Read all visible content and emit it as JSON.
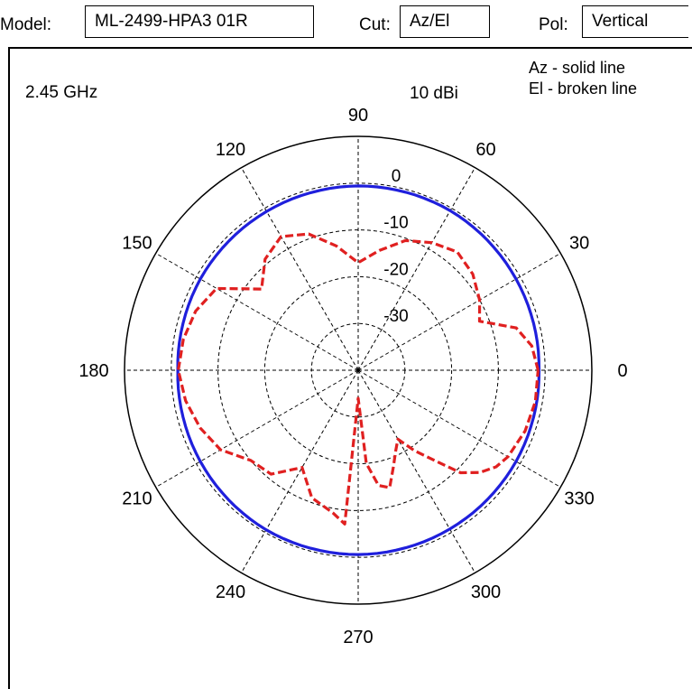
{
  "header": {
    "model_label": "Model:",
    "model_value": "ML-2499-HPA3 01R",
    "cut_label": "Cut:",
    "cut_value": "Az/El",
    "pol_label": "Pol:",
    "pol_value": "Vertical"
  },
  "chart_data": {
    "type": "polar",
    "frequency": "2.45 GHz",
    "legend": [
      "Az - solid line",
      "El - broken line"
    ],
    "scale_label": "10 dBi",
    "radial_ticks": [
      0,
      -10,
      -20,
      -30
    ],
    "radial_range": [
      -40,
      10
    ],
    "angle_ticks": [
      0,
      30,
      60,
      90,
      120,
      150,
      180,
      210,
      240,
      270,
      300,
      330
    ],
    "grid": true,
    "series": [
      {
        "name": "Az",
        "line": "solid",
        "color": "#1f1fdc",
        "angles": [
          0,
          30,
          60,
          90,
          120,
          150,
          180,
          210,
          240,
          270,
          300,
          330,
          360
        ],
        "values": [
          -1.3,
          -1.0,
          -0.6,
          -0.6,
          -0.8,
          -1.0,
          -1.4,
          -1.0,
          -0.6,
          -0.6,
          -0.8,
          -1.0,
          -1.3
        ]
      },
      {
        "name": "El",
        "line": "dashed",
        "color": "#e02020",
        "angles": [
          0,
          8,
          15,
          22,
          30,
          40,
          50,
          60,
          70,
          80,
          90,
          100,
          110,
          120,
          130,
          140,
          150,
          160,
          170,
          180,
          190,
          200,
          210,
          220,
          230,
          240,
          250,
          260,
          265,
          270,
          275,
          280,
          285,
          290,
          295,
          300,
          305,
          310,
          315,
          320,
          325,
          330,
          340,
          350,
          360
        ],
        "values": [
          -1.5,
          -2.5,
          -5.0,
          -12.0,
          -10.0,
          -8.0,
          -7.0,
          -8.5,
          -10.5,
          -14.0,
          -17.0,
          -13.0,
          -9.0,
          -7.0,
          -9.0,
          -13.0,
          -5.0,
          -3.0,
          -2.0,
          -1.5,
          -2.5,
          -4.0,
          -6.0,
          -10.0,
          -11.0,
          -16.0,
          -11.0,
          -9.0,
          -7.0,
          -34.0,
          -20.0,
          -15.0,
          -14.0,
          -18.0,
          -21.0,
          -23.0,
          -19.0,
          -15.0,
          -9.0,
          -6.0,
          -4.0,
          -3.0,
          -2.0,
          -1.5,
          -1.5
        ]
      }
    ]
  }
}
